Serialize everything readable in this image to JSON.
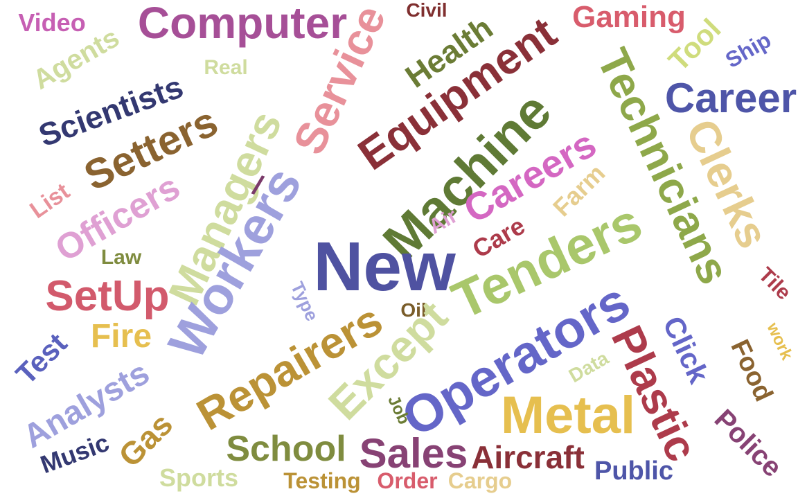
{
  "words": [
    {
      "text": "Video",
      "color": "#c65fb3"
    },
    {
      "text": "Computer",
      "color": "#a64f97"
    },
    {
      "text": "Civil",
      "color": "#7f2f2f"
    },
    {
      "text": "Gaming",
      "color": "#d85c6c"
    },
    {
      "text": "Agents",
      "color": "#cfdc9e"
    },
    {
      "text": "Real",
      "color": "#cfdc9e"
    },
    {
      "text": "Service",
      "color": "#e8919a"
    },
    {
      "text": "Health",
      "color": "#6b7c35"
    },
    {
      "text": "Equipment",
      "color": "#8a3038"
    },
    {
      "text": "Technicians",
      "color": "#8ea84a"
    },
    {
      "text": "Tool",
      "color": "#cfdc7c"
    },
    {
      "text": "Ship",
      "color": "#6466c8"
    },
    {
      "text": "Scientists",
      "color": "#333871"
    },
    {
      "text": "Setters",
      "color": "#8a6330"
    },
    {
      "text": "Managers",
      "color": "#cfdc9e"
    },
    {
      "text": "Career",
      "color": "#4e55a8"
    },
    {
      "text": "Machine",
      "color": "#5f7a35"
    },
    {
      "text": "Clerks",
      "color": "#e6cd8e"
    },
    {
      "text": "Careers",
      "color": "#d467c2"
    },
    {
      "text": "List",
      "color": "#e8919a"
    },
    {
      "text": "Officers",
      "color": "#dfa0d3"
    },
    {
      "text": "Workers",
      "color": "#9ea0dd"
    },
    {
      "text": "Farm",
      "color": "#e6cd8e"
    },
    {
      "text": "Air",
      "color": "#dfa0d3"
    },
    {
      "text": "Care",
      "color": "#ad3b4b"
    },
    {
      "text": "New",
      "color": "#4f52a1"
    },
    {
      "text": "Tenders",
      "color": "#a9c76b"
    },
    {
      "text": "Law",
      "color": "#7f8c3f"
    },
    {
      "text": "Tile",
      "color": "#ad3b4b"
    },
    {
      "text": "SetUp",
      "color": "#d25a6c"
    },
    {
      "text": "Type",
      "color": "#9ea0dd"
    },
    {
      "text": "Oil",
      "color": "#7a5d2a"
    },
    {
      "text": "Click",
      "color": "#6466c8"
    },
    {
      "text": "work",
      "color": "#e6bf4f"
    },
    {
      "text": "Fire",
      "color": "#e6bf4f"
    },
    {
      "text": "Repairers",
      "color": "#bb9236"
    },
    {
      "text": "Except",
      "color": "#cfdc9e"
    },
    {
      "text": "Operators",
      "color": "#6466c8"
    },
    {
      "text": "Plastic",
      "color": "#ad3b4b"
    },
    {
      "text": "Food",
      "color": "#8a6330"
    },
    {
      "text": "Test",
      "color": "#5a61bd"
    },
    {
      "text": "Analysts",
      "color": "#9ea0dd"
    },
    {
      "text": "Data",
      "color": "#cfdc9e"
    },
    {
      "text": "Gas",
      "color": "#bb9236"
    },
    {
      "text": "Job",
      "color": "#6b7c35"
    },
    {
      "text": "Metal",
      "color": "#e6bf4f"
    },
    {
      "text": "School",
      "color": "#7f8c3f"
    },
    {
      "text": "Sales",
      "color": "#874274"
    },
    {
      "text": "Police",
      "color": "#874274"
    },
    {
      "text": "Music",
      "color": "#333871"
    },
    {
      "text": "Aircraft",
      "color": "#8a3038"
    },
    {
      "text": "Public",
      "color": "#4e55a8"
    },
    {
      "text": "Sports",
      "color": "#cfdc9e"
    },
    {
      "text": "Testing",
      "color": "#bb9236"
    },
    {
      "text": "Order",
      "color": "#d85c6c"
    },
    {
      "text": "Cargo",
      "color": "#e6cd8e"
    },
    {
      "text": "/",
      "color": "#7a3a6a"
    }
  ]
}
